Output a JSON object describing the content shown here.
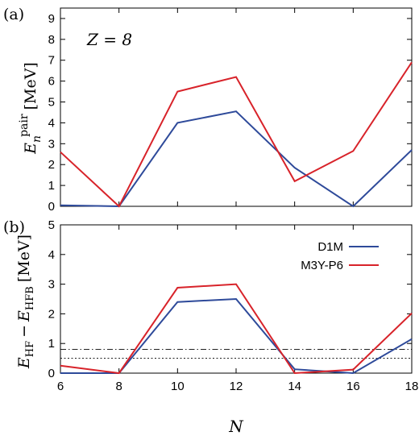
{
  "colors": {
    "D1M": "#2e4a9a",
    "M3Y-P6": "#d8232a",
    "frame": "#000000"
  },
  "chart_data": [
    {
      "type": "line",
      "panel_label": "(a)",
      "annotation": "Z = 8",
      "ylabel_main": "E",
      "ylabel_sub": "n",
      "ylabel_sup": "pair",
      "ylabel_unit": "[MeV]",
      "xlim": [
        6,
        18
      ],
      "ylim": [
        0,
        9.5
      ],
      "x_ticks": [
        6,
        8,
        10,
        12,
        14,
        16,
        18
      ],
      "y_ticks": [
        0,
        1,
        2,
        3,
        4,
        5,
        6,
        7,
        8,
        9
      ],
      "x_tick_labels_shown": false,
      "x": [
        6,
        8,
        10,
        12,
        14,
        16,
        18
      ],
      "series": [
        {
          "name": "D1M",
          "color": "#2e4a9a",
          "values": [
            0.05,
            0.0,
            4.0,
            4.55,
            1.85,
            0.0,
            2.7
          ]
        },
        {
          "name": "M3Y-P6",
          "color": "#d8232a",
          "values": [
            2.6,
            0.0,
            5.5,
            6.2,
            1.2,
            2.65,
            6.9
          ]
        }
      ]
    },
    {
      "type": "line",
      "panel_label": "(b)",
      "ylabel_a": "E",
      "ylabel_a_sub": "HF",
      "ylabel_minus": "−",
      "ylabel_b": "E",
      "ylabel_b_sub": "HFB",
      "ylabel_unit": "[MeV]",
      "xlabel": "N",
      "xlim": [
        6,
        18
      ],
      "ylim": [
        0,
        5
      ],
      "x_ticks": [
        6,
        8,
        10,
        12,
        14,
        16,
        18
      ],
      "x_tick_labels": [
        "6",
        "8",
        "10",
        "12",
        "14",
        "16",
        "18"
      ],
      "y_ticks": [
        0,
        1,
        2,
        3,
        4,
        5
      ],
      "y_tick_labels": [
        "0",
        "1",
        "2",
        "3",
        "4",
        "5"
      ],
      "x": [
        6,
        8,
        10,
        12,
        14,
        16,
        18
      ],
      "series": [
        {
          "name": "D1M",
          "color": "#2e4a9a",
          "values": [
            0.0,
            0.0,
            2.4,
            2.5,
            0.13,
            0.0,
            1.15
          ]
        },
        {
          "name": "M3Y-P6",
          "color": "#d8232a",
          "values": [
            0.25,
            0.0,
            2.88,
            3.0,
            0.0,
            0.12,
            2.02
          ]
        }
      ],
      "reference_lines": [
        {
          "y": 0.8,
          "style": "dashdot"
        },
        {
          "y": 0.5,
          "style": "dotted"
        }
      ],
      "legend": {
        "placement": "top-right",
        "entries": [
          "D1M",
          "M3Y-P6"
        ]
      }
    }
  ],
  "panel_a_y_tick_labels": [
    "0",
    "1",
    "2",
    "3",
    "4",
    "5",
    "6",
    "7",
    "8",
    "9"
  ]
}
